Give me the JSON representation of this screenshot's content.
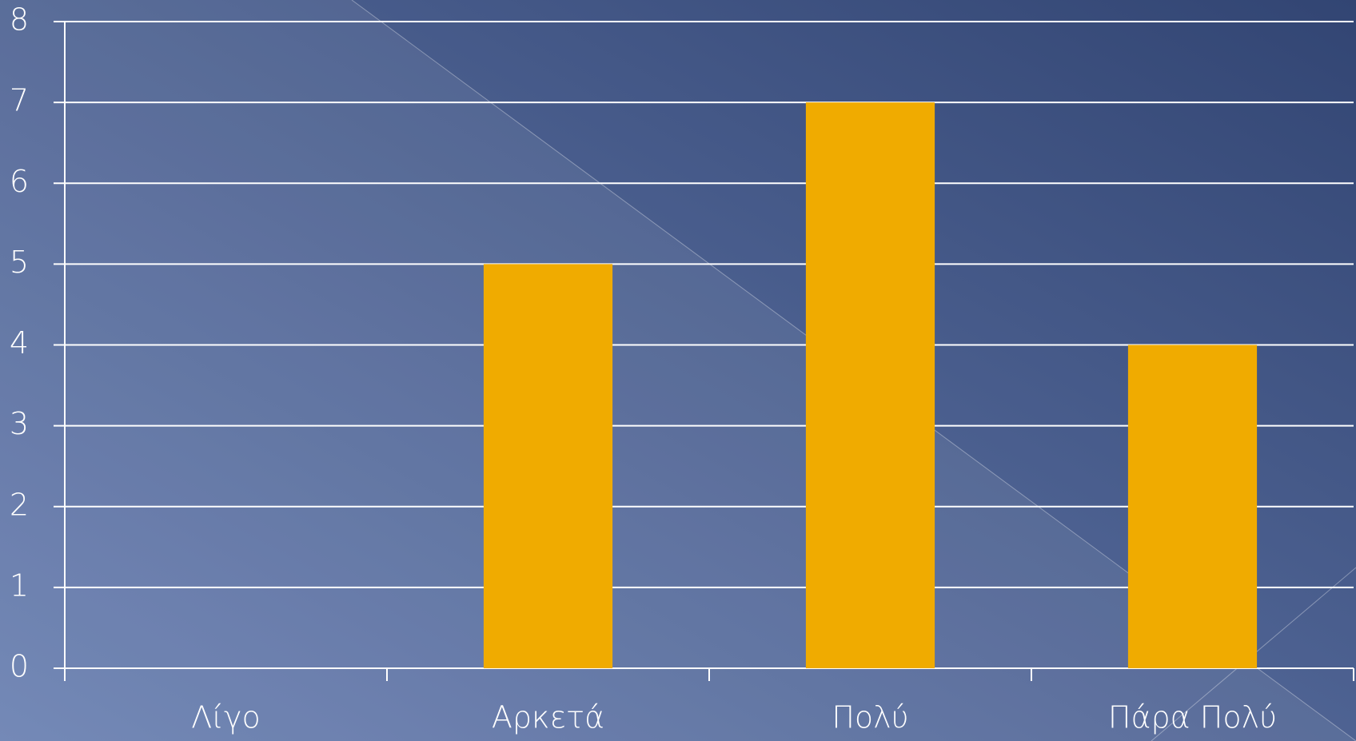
{
  "chart_data": {
    "type": "bar",
    "categories": [
      "Λίγο",
      "Αρκετά",
      "Πολύ",
      "Πάρα Πολύ"
    ],
    "values": [
      0,
      5,
      7,
      4
    ],
    "color": "#f0ab00",
    "ylim": [
      0,
      8
    ],
    "yticks": [
      0,
      1,
      2,
      3,
      4,
      5,
      6,
      7,
      8
    ],
    "grid": true
  }
}
